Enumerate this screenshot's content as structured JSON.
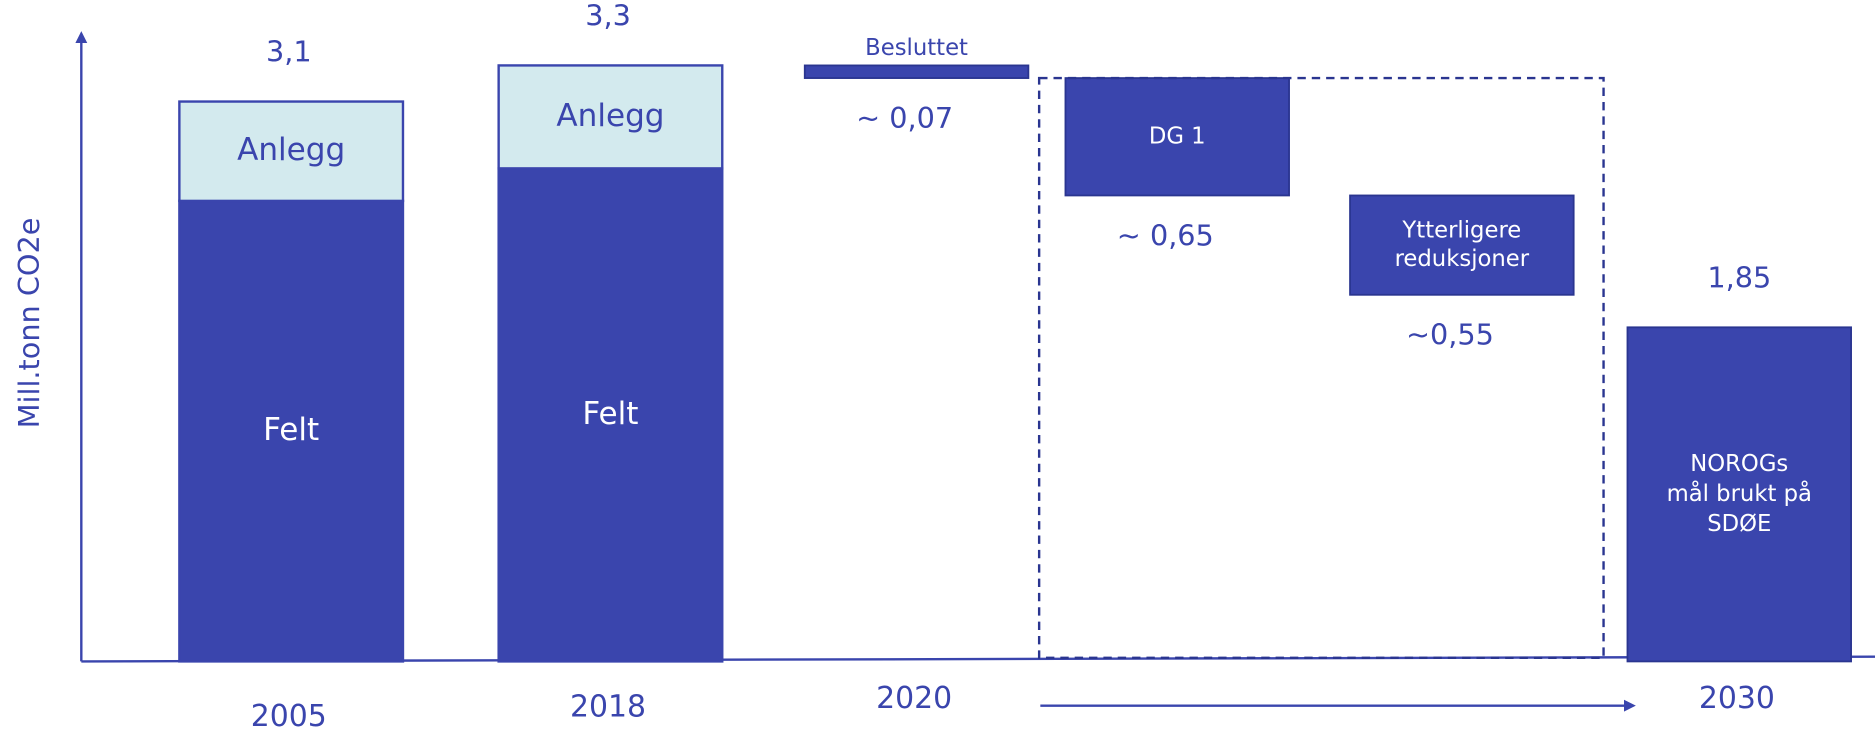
{
  "chart_data": {
    "type": "waterfall",
    "y_label": "Mill.tonn CO2e",
    "ylim": [
      0,
      3.5
    ],
    "color": "#3a45ad",
    "light_color": "#d3eaee",
    "steps": [
      {
        "kind": "total",
        "category": "2005",
        "value": 3.1,
        "value_label": "3,1",
        "segments": [
          {
            "name": "Felt",
            "value": 2.55,
            "color": "#3a45ad"
          },
          {
            "name": "Anlegg",
            "value": 0.55,
            "color": "#d3eaee"
          }
        ]
      },
      {
        "kind": "total",
        "category": "2018",
        "value": 3.3,
        "value_label": "3,3",
        "segments": [
          {
            "name": "Felt",
            "value": 2.73,
            "color": "#3a45ad"
          },
          {
            "name": "Anlegg",
            "value": 0.57,
            "color": "#d3eaee"
          }
        ]
      },
      {
        "kind": "decrease",
        "category": "2020",
        "name_lines": [
          "Besluttet"
        ],
        "value": 0.07,
        "value_label": "~ 0,07"
      },
      {
        "kind": "decrease",
        "category": null,
        "name_lines": [
          "DG 1"
        ],
        "value": 0.65,
        "value_label": "~ 0,65"
      },
      {
        "kind": "decrease",
        "category": null,
        "name_lines": [
          "Ytterligere",
          "reduksjoner"
        ],
        "value": 0.55,
        "value_label": "~0,55"
      },
      {
        "kind": "final",
        "category": "2030",
        "name_lines": [
          "NOROGs",
          "mål brukt på",
          "SDØE"
        ],
        "value": 1.85,
        "value_label": "1,85"
      }
    ]
  }
}
